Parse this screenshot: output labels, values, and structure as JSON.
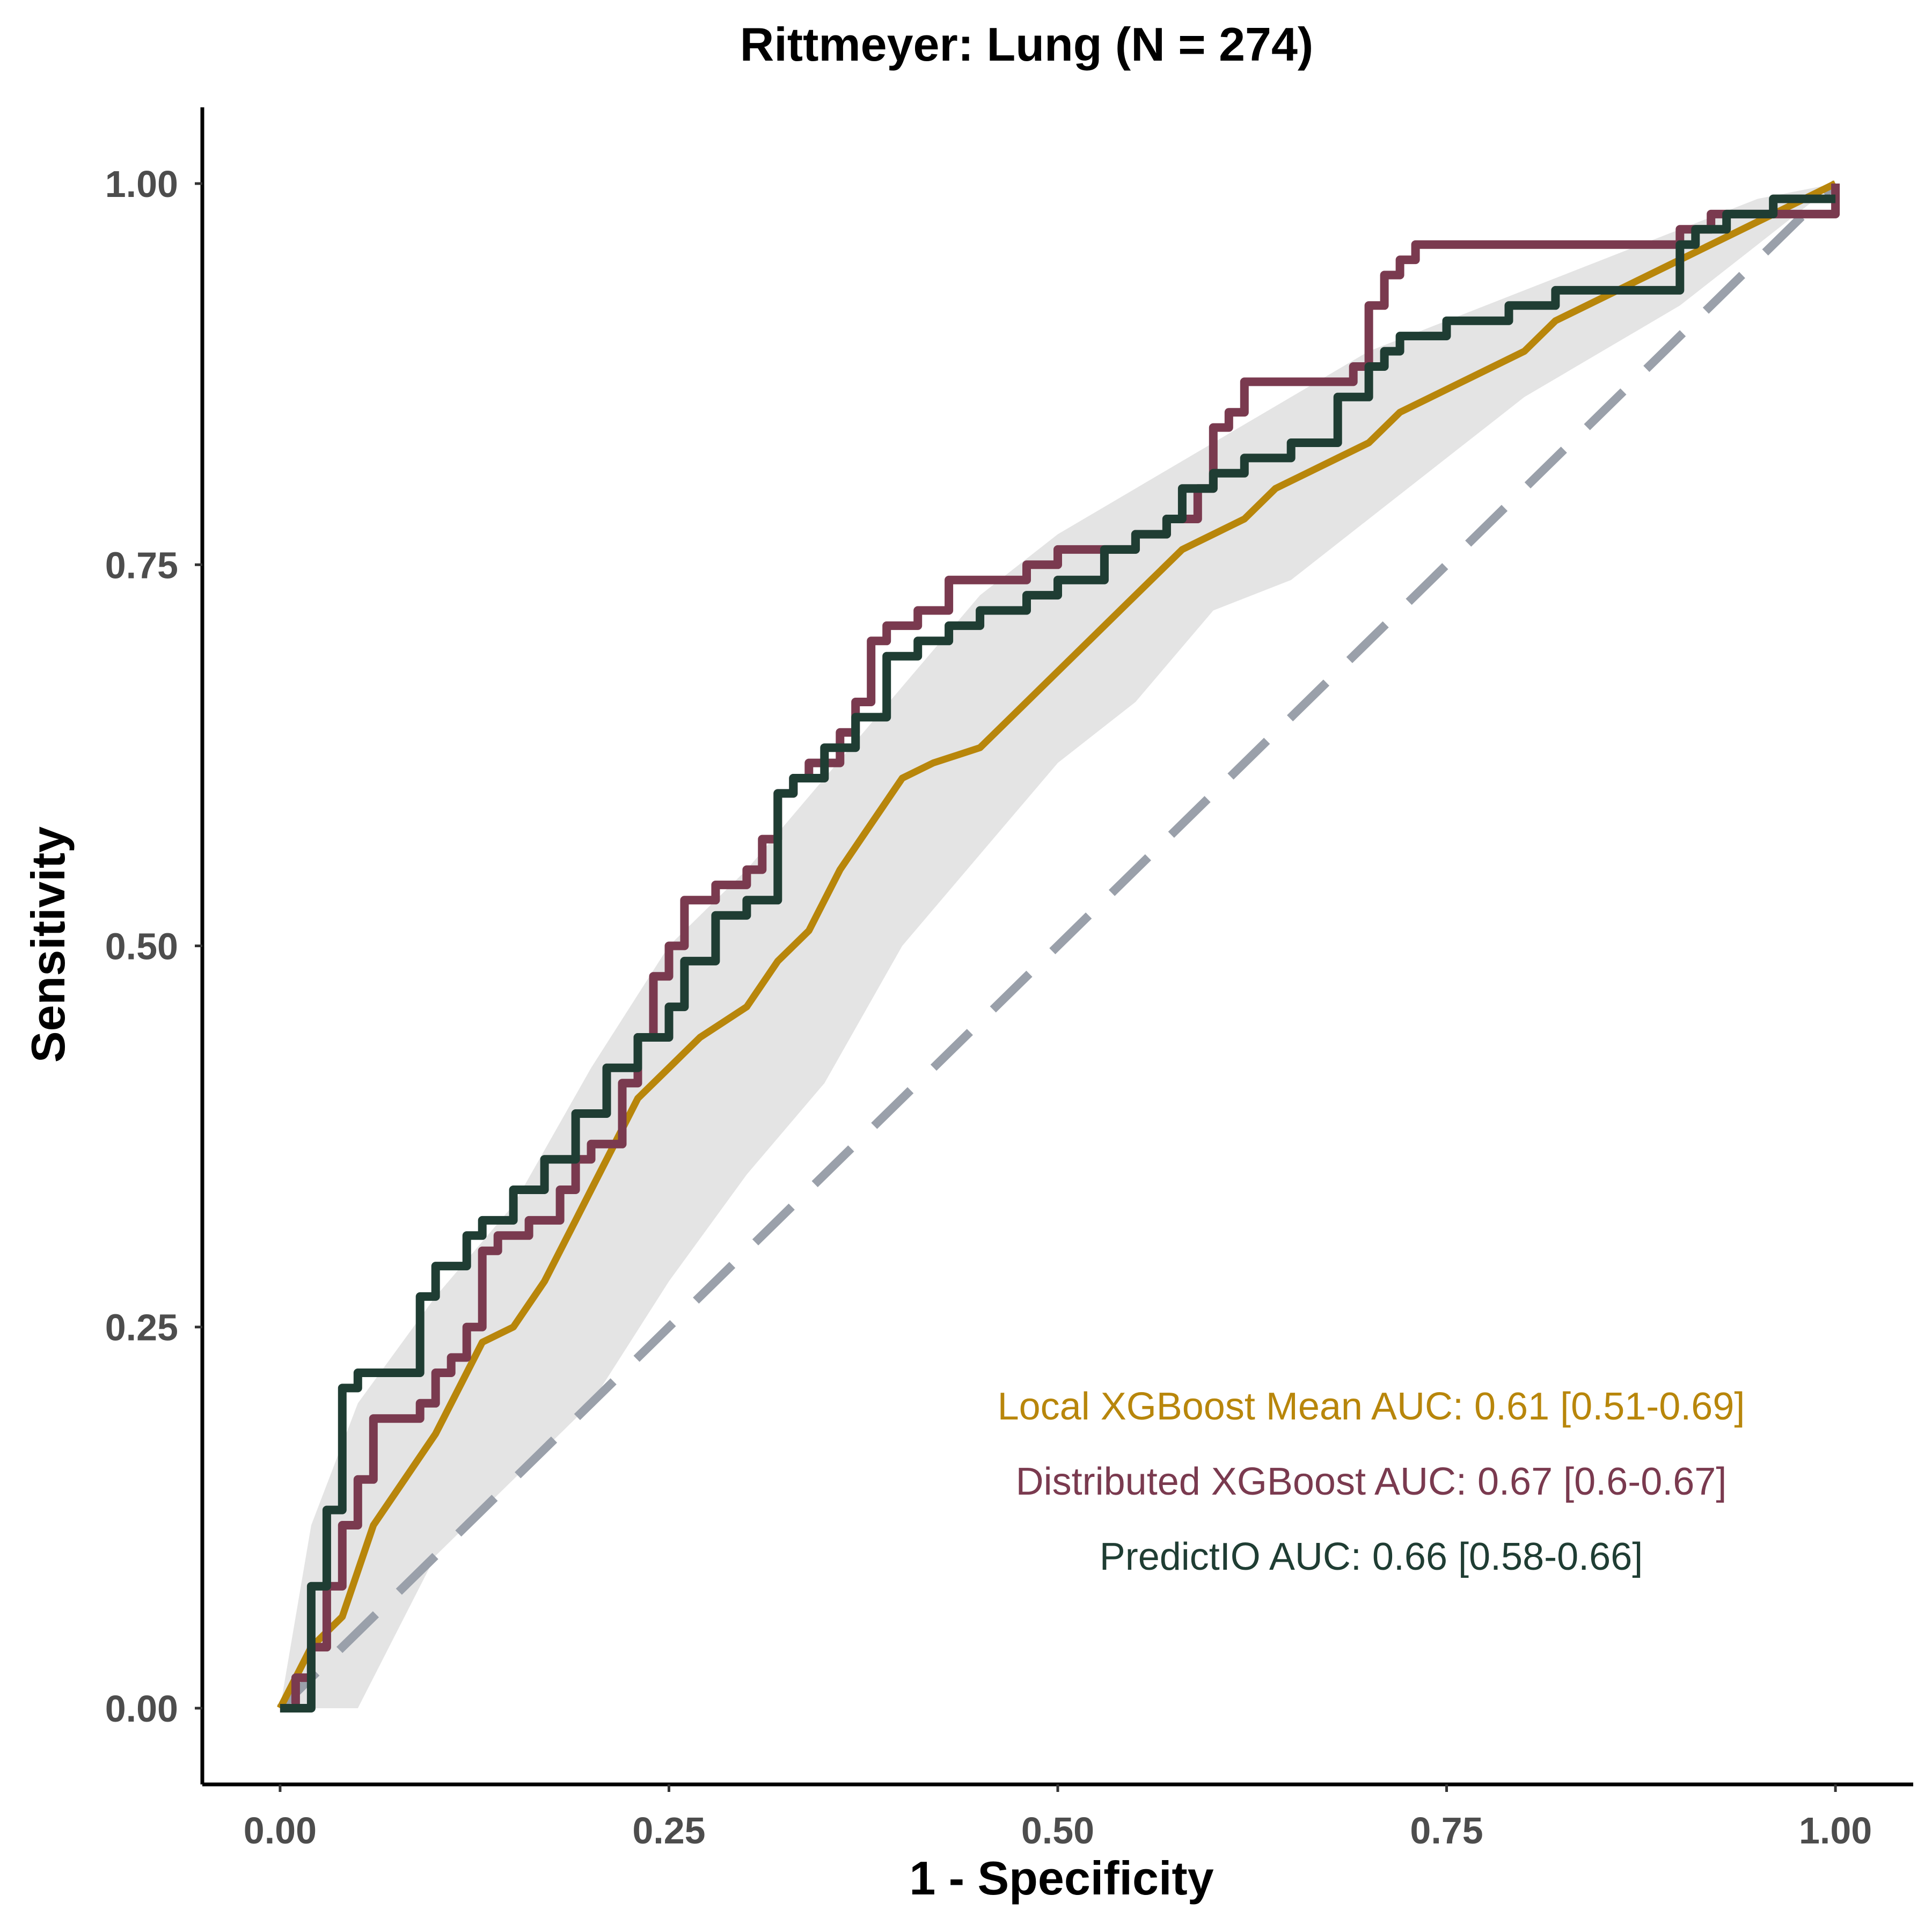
{
  "chart_data": {
    "type": "line",
    "title": "Rittmeyer: Lung (N = 274)",
    "xlabel": "1 - Specificity",
    "ylabel": "Sensitivity",
    "xlim": [
      -0.05,
      1.05
    ],
    "ylim": [
      -0.05,
      1.05
    ],
    "xticks": [
      "0.00",
      "0.25",
      "0.50",
      "0.75",
      "1.00"
    ],
    "yticks": [
      "0.00",
      "0.25",
      "0.50",
      "0.75",
      "1.00"
    ],
    "grid": false,
    "legend_position": "bottom-right",
    "reference_line": {
      "style": "dashed",
      "color": "#9aa0aa",
      "from": [
        0,
        0
      ],
      "to": [
        1,
        1
      ]
    },
    "confidence_band": {
      "name": "Local XGBoost Mean AUC: 0.61 [0.51-0.69]",
      "color": "#e4e4e4",
      "x": [
        0,
        0.02,
        0.05,
        0.1,
        0.15,
        0.2,
        0.25,
        0.3,
        0.35,
        0.4,
        0.45,
        0.5,
        0.55,
        0.6,
        0.65,
        0.7,
        0.75,
        0.8,
        0.85,
        0.9,
        0.95,
        1.0
      ],
      "upper": [
        0.0,
        0.12,
        0.2,
        0.27,
        0.33,
        0.42,
        0.5,
        0.55,
        0.61,
        0.67,
        0.73,
        0.77,
        0.8,
        0.83,
        0.86,
        0.89,
        0.91,
        0.93,
        0.95,
        0.97,
        0.99,
        1.0
      ],
      "lower": [
        0.0,
        0.0,
        0.0,
        0.1,
        0.15,
        0.2,
        0.28,
        0.35,
        0.41,
        0.5,
        0.56,
        0.62,
        0.66,
        0.72,
        0.74,
        0.78,
        0.82,
        0.86,
        0.89,
        0.92,
        0.96,
        1.0
      ]
    },
    "series": [
      {
        "name": "Local XGBoost Mean AUC: 0.61 [0.51-0.69]",
        "color": "#b8860b",
        "style": "smooth",
        "x": [
          0,
          0.02,
          0.04,
          0.05,
          0.06,
          0.08,
          0.1,
          0.12,
          0.13,
          0.15,
          0.17,
          0.19,
          0.2,
          0.21,
          0.22,
          0.23,
          0.24,
          0.25,
          0.26,
          0.27,
          0.3,
          0.32,
          0.34,
          0.36,
          0.38,
          0.4,
          0.42,
          0.45,
          0.47,
          0.5,
          0.52,
          0.54,
          0.56,
          0.58,
          0.6,
          0.62,
          0.64,
          0.66,
          0.68,
          0.7,
          0.72,
          0.74,
          0.76,
          0.78,
          0.8,
          0.82,
          0.84,
          0.86,
          0.88,
          0.9,
          0.92,
          0.94,
          0.96,
          0.98,
          1.0
        ],
        "y": [
          0.0,
          0.04,
          0.06,
          0.09,
          0.12,
          0.15,
          0.18,
          0.22,
          0.24,
          0.25,
          0.28,
          0.32,
          0.34,
          0.36,
          0.38,
          0.4,
          0.41,
          0.42,
          0.43,
          0.44,
          0.46,
          0.49,
          0.51,
          0.55,
          0.58,
          0.61,
          0.62,
          0.63,
          0.65,
          0.68,
          0.7,
          0.72,
          0.74,
          0.76,
          0.77,
          0.78,
          0.8,
          0.81,
          0.82,
          0.83,
          0.85,
          0.86,
          0.87,
          0.88,
          0.89,
          0.91,
          0.92,
          0.93,
          0.94,
          0.95,
          0.96,
          0.97,
          0.98,
          0.99,
          1.0
        ]
      },
      {
        "name": "Distributed XGBoost AUC: 0.67 [0.6-0.67]",
        "color": "#7a3a4f",
        "style": "step",
        "x": [
          0,
          0.01,
          0.02,
          0.03,
          0.04,
          0.05,
          0.06,
          0.09,
          0.1,
          0.11,
          0.12,
          0.13,
          0.14,
          0.16,
          0.18,
          0.19,
          0.2,
          0.22,
          0.23,
          0.24,
          0.25,
          0.26,
          0.28,
          0.3,
          0.31,
          0.32,
          0.33,
          0.34,
          0.36,
          0.37,
          0.38,
          0.39,
          0.41,
          0.43,
          0.45,
          0.48,
          0.5,
          0.55,
          0.57,
          0.59,
          0.6,
          0.61,
          0.62,
          0.64,
          0.69,
          0.7,
          0.71,
          0.72,
          0.73,
          0.9,
          0.92,
          1.0
        ],
        "y": [
          0.0,
          0.02,
          0.04,
          0.08,
          0.12,
          0.15,
          0.19,
          0.2,
          0.22,
          0.23,
          0.25,
          0.3,
          0.31,
          0.32,
          0.34,
          0.36,
          0.37,
          0.41,
          0.44,
          0.48,
          0.5,
          0.53,
          0.54,
          0.55,
          0.57,
          0.6,
          0.61,
          0.62,
          0.64,
          0.66,
          0.7,
          0.71,
          0.72,
          0.74,
          0.74,
          0.75,
          0.76,
          0.77,
          0.78,
          0.8,
          0.84,
          0.85,
          0.87,
          0.87,
          0.88,
          0.92,
          0.94,
          0.95,
          0.96,
          0.97,
          0.98,
          1.0
        ]
      },
      {
        "name": "PredictIO AUC: 0.66 [0.58-0.66]",
        "color": "#1f3d33",
        "style": "step",
        "x": [
          0,
          0.02,
          0.03,
          0.04,
          0.05,
          0.09,
          0.1,
          0.12,
          0.13,
          0.15,
          0.17,
          0.19,
          0.21,
          0.23,
          0.25,
          0.26,
          0.28,
          0.3,
          0.32,
          0.33,
          0.35,
          0.37,
          0.39,
          0.41,
          0.43,
          0.45,
          0.48,
          0.5,
          0.53,
          0.55,
          0.57,
          0.58,
          0.6,
          0.62,
          0.65,
          0.68,
          0.7,
          0.71,
          0.72,
          0.74,
          0.75,
          0.77,
          0.78,
          0.79,
          0.8,
          0.82,
          0.85,
          0.9,
          0.91,
          0.93,
          0.96,
          0.98,
          1.0
        ],
        "y": [
          0.0,
          0.08,
          0.13,
          0.21,
          0.22,
          0.27,
          0.29,
          0.31,
          0.32,
          0.34,
          0.36,
          0.39,
          0.42,
          0.44,
          0.46,
          0.49,
          0.52,
          0.53,
          0.6,
          0.61,
          0.63,
          0.65,
          0.69,
          0.7,
          0.71,
          0.72,
          0.73,
          0.74,
          0.76,
          0.77,
          0.78,
          0.8,
          0.81,
          0.82,
          0.83,
          0.86,
          0.88,
          0.89,
          0.9,
          0.9,
          0.91,
          0.91,
          0.91,
          0.92,
          0.92,
          0.93,
          0.93,
          0.96,
          0.97,
          0.98,
          0.99,
          0.99,
          0.99
        ]
      }
    ]
  }
}
